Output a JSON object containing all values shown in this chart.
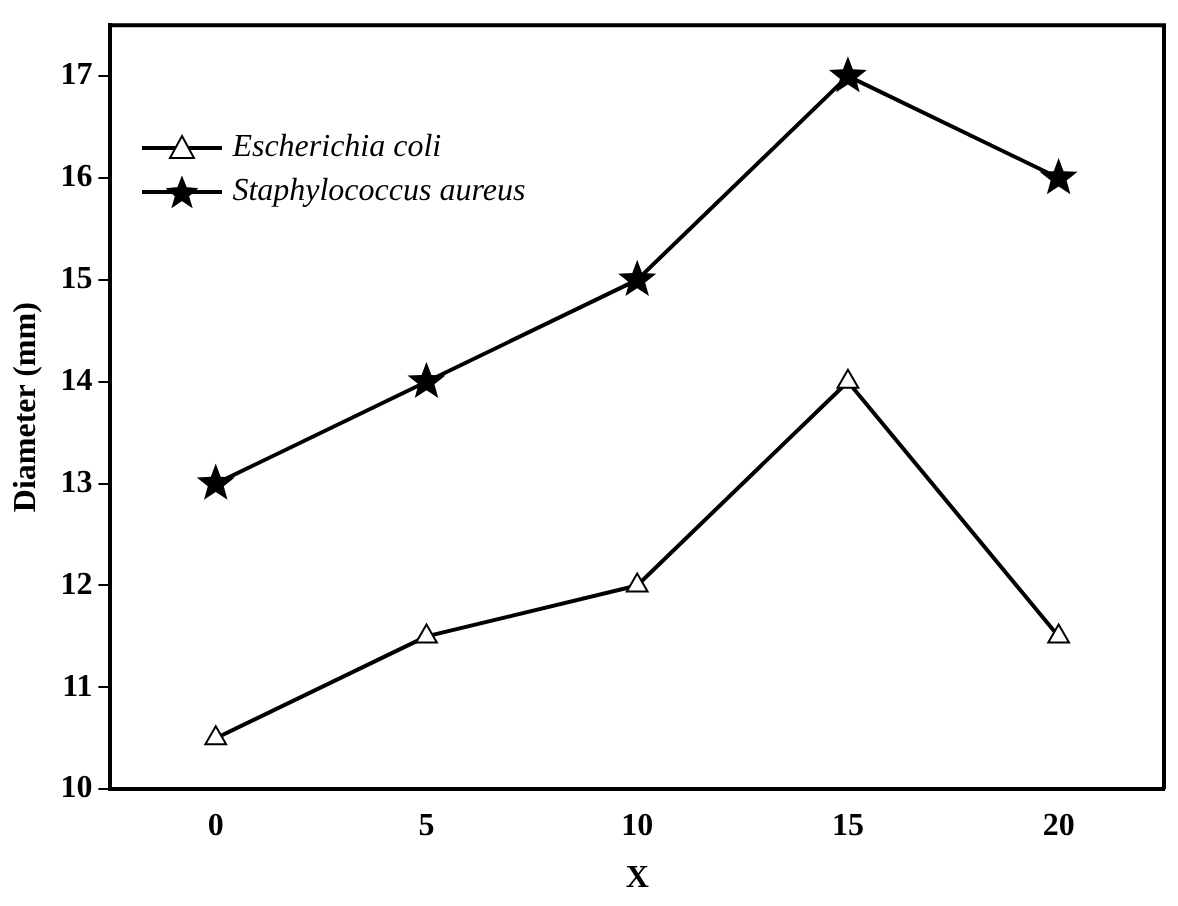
{
  "chart_data": {
    "type": "line",
    "xlabel": "X",
    "ylabel": "Diameter (mm)",
    "x": [
      0,
      5,
      10,
      15,
      20
    ],
    "series": [
      {
        "name": "Escherichia coli",
        "color": "#000000",
        "values": [
          10.5,
          11.5,
          12,
          14,
          11.5
        ],
        "marker": "triangle"
      },
      {
        "name": "Staphylococcus aureus",
        "color": "#000000",
        "values": [
          13,
          14,
          15,
          17,
          16
        ],
        "marker": "star"
      }
    ],
    "xlim": [
      -2.5,
      22.5
    ],
    "xticks": [
      0,
      5,
      10,
      15,
      20
    ],
    "ylim": [
      10,
      17.5
    ],
    "yticks": [
      10,
      11,
      12,
      13,
      14,
      15,
      16,
      17
    ],
    "grid": false,
    "legend": "top left",
    "line_style": "solid"
  }
}
